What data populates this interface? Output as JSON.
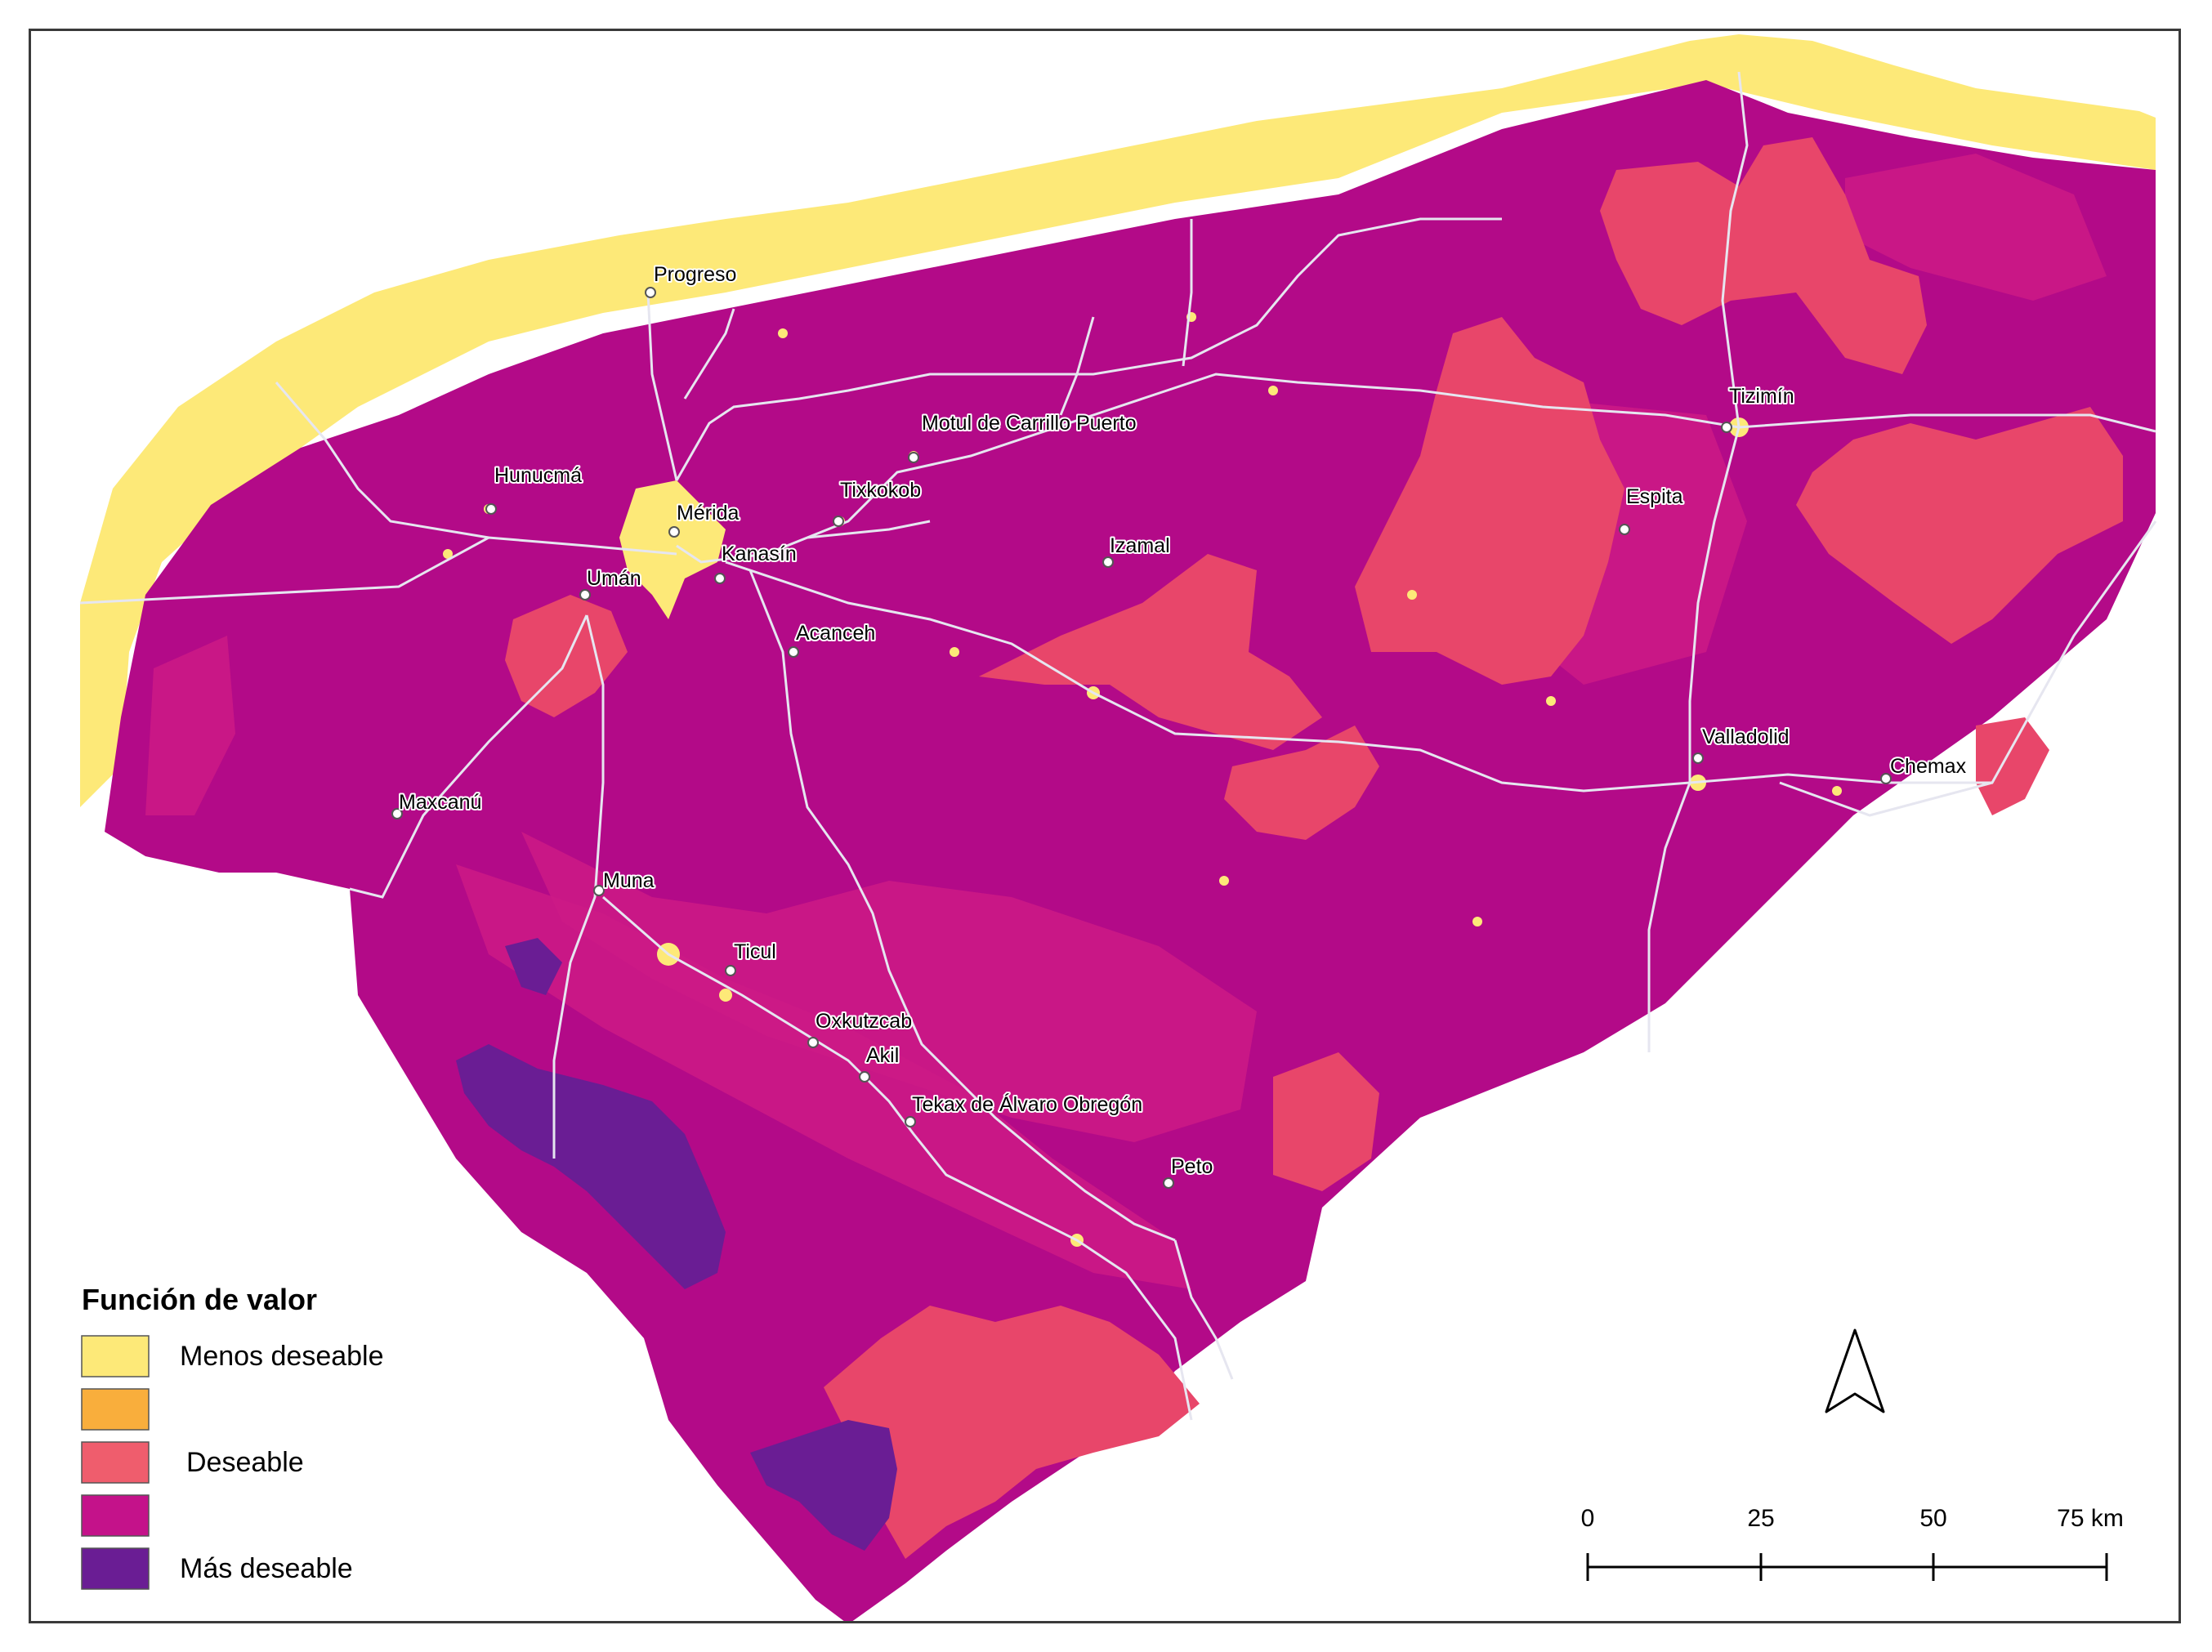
{
  "legend": {
    "title": "Función de valor",
    "items": [
      {
        "label": "Menos deseable",
        "color": "#fde978"
      },
      {
        "label": "",
        "color": "#f9ae3c"
      },
      {
        "label": "Deseable",
        "color": "#ef5d6d"
      },
      {
        "label": "",
        "color": "#c4128a"
      },
      {
        "label": "Más deseable",
        "color": "#6a1d94"
      }
    ]
  },
  "colors": {
    "menos": "#fde978",
    "naranja": "#f9ae3c",
    "deseable": "#e8466a",
    "medio": "#b80a88",
    "medio_claro": "#cc1a86",
    "mas": "#6a1d94",
    "roads": "#e6e6f0"
  },
  "cities": [
    {
      "id": "progreso",
      "name": "Progreso"
    },
    {
      "id": "motul",
      "name": "Motul de Carrillo Puerto"
    },
    {
      "id": "tizimin",
      "name": "Tizimín"
    },
    {
      "id": "hunucma",
      "name": "Hunucmá"
    },
    {
      "id": "merida",
      "name": "Mérida"
    },
    {
      "id": "tixkokob",
      "name": "Tixkokob"
    },
    {
      "id": "espita",
      "name": "Espita"
    },
    {
      "id": "kanasin",
      "name": "Kanasín"
    },
    {
      "id": "izamal",
      "name": "Izamal"
    },
    {
      "id": "uman",
      "name": "Umán"
    },
    {
      "id": "acanceh",
      "name": "Acanceh"
    },
    {
      "id": "valladolid",
      "name": "Valladolid"
    },
    {
      "id": "chemax",
      "name": "Chemax"
    },
    {
      "id": "maxcanu",
      "name": "Maxcanú"
    },
    {
      "id": "muna",
      "name": "Muna"
    },
    {
      "id": "ticul",
      "name": "Ticul"
    },
    {
      "id": "oxkutzcab",
      "name": "Oxkutzcab"
    },
    {
      "id": "akil",
      "name": "Akil"
    },
    {
      "id": "tekax",
      "name": "Tekax de Álvaro Obregón"
    },
    {
      "id": "peto",
      "name": "Peto"
    }
  ],
  "scale": {
    "ticks": [
      "0",
      "25",
      "50",
      "75 km"
    ]
  },
  "north_arrow": "north-arrow-icon"
}
